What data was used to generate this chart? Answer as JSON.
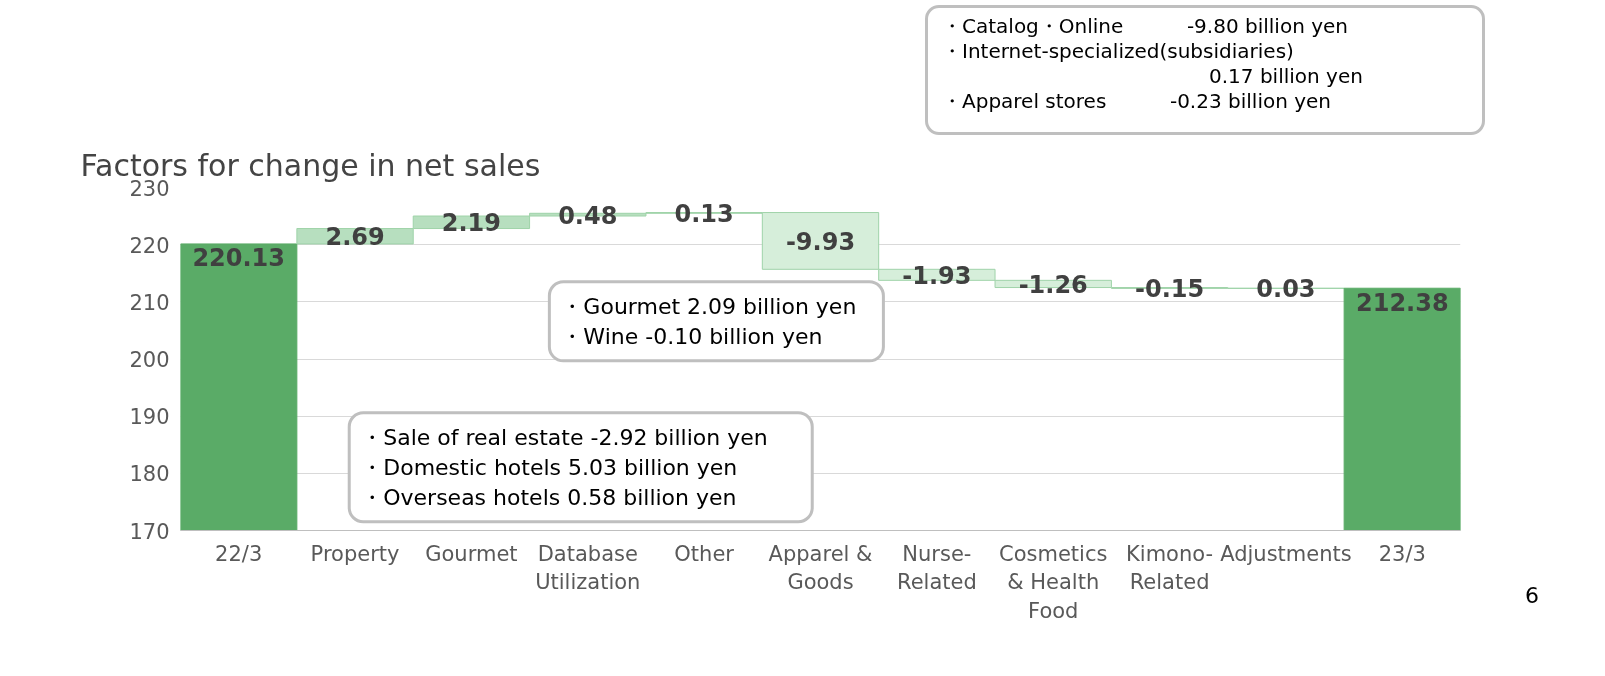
{
  "chart_data": {
    "type": "bar",
    "title": "Factors for change in net sales",
    "categories": [
      "22/3",
      "Property",
      "Gourmet",
      "Database Utilization",
      "Other",
      "Apparel & Goods",
      "Nurse-Related",
      "Cosmetics & Health Food",
      "Kimono-Related",
      "Adjustments",
      "23/3"
    ],
    "values": [
      220.13,
      2.69,
      2.19,
      0.48,
      0.13,
      -9.93,
      -1.93,
      -1.26,
      -0.15,
      0.03,
      212.38
    ],
    "base": [
      0,
      220.13,
      222.82,
      225.01,
      225.49,
      225.62,
      215.69,
      213.76,
      212.5,
      212.35,
      0
    ],
    "colors": [
      "#5aab67",
      "#b7dfbf",
      "#b7dfbf",
      "#b7dfbf",
      "#b7dfbf",
      "#d6eeda",
      "#d6eeda",
      "#d6eeda",
      "#d6eeda",
      "#b7dfbf",
      "#5aab67"
    ],
    "ylim": [
      170,
      230
    ],
    "yticks": [
      170,
      180,
      190,
      200,
      210,
      220,
      230
    ],
    "grid": "y",
    "data_labels": true,
    "annotations": [
      "・Catalog・Online          -9.80 billion yen\n・Internet-specialized(subsidiaries)\n                                          0.17 billion yen\n・Apparel stores          -0.23 billion yen",
      "・Gourmet  2.09 billion yen\n・Wine        -0.10 billion yen",
      "・Sale of real estate  -2.92 billion yen\n・Domestic hotels          5.03 billion yen\n・Overseas hotels          0.58 billion yen",
      "6"
    ]
  }
}
